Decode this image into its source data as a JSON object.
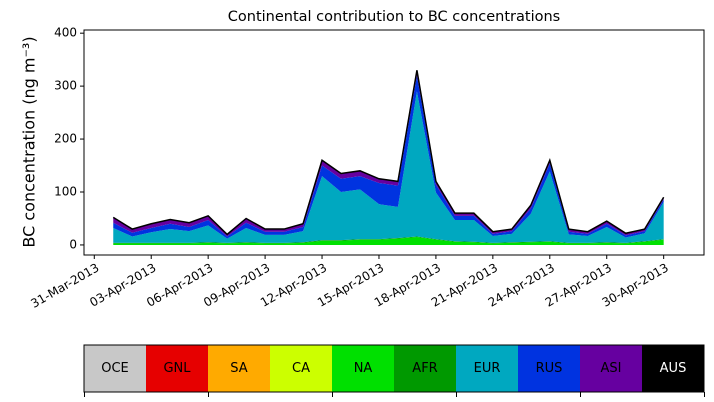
{
  "chart_data": {
    "type": "stacked_area",
    "title": "Continental contribution to BC concentrations",
    "ylabel": "BC concentration (ng m⁻³)",
    "x": [
      "2013-04-01",
      "2013-04-02",
      "2013-04-03",
      "2013-04-04",
      "2013-04-05",
      "2013-04-06",
      "2013-04-07",
      "2013-04-08",
      "2013-04-09",
      "2013-04-10",
      "2013-04-11",
      "2013-04-12",
      "2013-04-13",
      "2013-04-14",
      "2013-04-15",
      "2013-04-16",
      "2013-04-17",
      "2013-04-18",
      "2013-04-19",
      "2013-04-20",
      "2013-04-21",
      "2013-04-22",
      "2013-04-23",
      "2013-04-24",
      "2013-04-25",
      "2013-04-26",
      "2013-04-27",
      "2013-04-28",
      "2013-04-29",
      "2013-04-30"
    ],
    "series": [
      {
        "name": "OCE",
        "color": "#c8c8c8",
        "values": [
          0,
          0,
          0,
          0,
          0,
          0,
          0,
          0,
          0,
          0,
          0,
          0,
          0,
          0,
          0,
          0,
          0,
          0,
          0,
          0,
          0,
          0,
          0,
          0,
          0,
          0,
          0,
          0,
          0,
          0
        ]
      },
      {
        "name": "GNL",
        "color": "#e60000",
        "values": [
          0,
          0,
          0,
          0,
          0,
          0,
          0,
          0,
          0,
          0,
          0,
          0,
          0,
          0,
          0,
          0,
          0,
          0,
          0,
          0,
          0,
          0,
          0,
          0,
          0,
          0,
          0,
          0,
          0,
          0
        ]
      },
      {
        "name": "SA",
        "color": "#ffaa00",
        "values": [
          0,
          0,
          0,
          0,
          0,
          0,
          0,
          0,
          0,
          0,
          0,
          0,
          0,
          0,
          0,
          0,
          0,
          0,
          0,
          0,
          0,
          0,
          0,
          0,
          0,
          0,
          0,
          0,
          0,
          0
        ]
      },
      {
        "name": "CA",
        "color": "#ccff00",
        "values": [
          0,
          0,
          0,
          0,
          0,
          0,
          0,
          0,
          0,
          0,
          0,
          0,
          0,
          0,
          0,
          0,
          0,
          0,
          0,
          0,
          0,
          0,
          0,
          0,
          0,
          0,
          0,
          0,
          0,
          0
        ]
      },
      {
        "name": "NA",
        "color": "#00e000",
        "values": [
          3,
          3,
          3,
          3,
          3,
          4,
          3,
          4,
          3,
          3,
          4,
          8,
          8,
          10,
          10,
          12,
          15,
          10,
          6,
          5,
          3,
          4,
          5,
          6,
          3,
          3,
          4,
          3,
          6,
          10
        ]
      },
      {
        "name": "AFR",
        "color": "#009900",
        "values": [
          1,
          1,
          1,
          1,
          1,
          1,
          1,
          1,
          1,
          1,
          1,
          1,
          1,
          1,
          1,
          1,
          1,
          1,
          1,
          1,
          1,
          1,
          1,
          1,
          1,
          1,
          1,
          1,
          1,
          1
        ]
      },
      {
        "name": "EUR",
        "color": "#00a8c0",
        "values": [
          28,
          12,
          20,
          26,
          22,
          32,
          8,
          27,
          15,
          15,
          21,
          121,
          91,
          94,
          66,
          59,
          274,
          88,
          40,
          41,
          13,
          16,
          53,
          132,
          16,
          13,
          29,
          10,
          15,
          70
        ]
      },
      {
        "name": "RUS",
        "color": "#0033e0",
        "values": [
          10,
          7,
          8,
          10,
          8,
          10,
          4,
          10,
          6,
          6,
          8,
          20,
          25,
          25,
          40,
          40,
          30,
          15,
          8,
          8,
          4,
          5,
          10,
          15,
          5,
          4,
          6,
          4,
          4,
          5
        ]
      },
      {
        "name": "ASI",
        "color": "#6600a0",
        "values": [
          10,
          7,
          8,
          8,
          8,
          8,
          4,
          8,
          5,
          5,
          6,
          10,
          10,
          10,
          8,
          8,
          10,
          6,
          5,
          5,
          4,
          4,
          6,
          6,
          5,
          4,
          5,
          4,
          4,
          4
        ]
      },
      {
        "name": "AUS",
        "color": "#000000",
        "values": [
          0,
          0,
          0,
          0,
          0,
          0,
          0,
          0,
          0,
          0,
          0,
          0,
          0,
          0,
          0,
          0,
          0,
          0,
          0,
          0,
          0,
          0,
          0,
          0,
          0,
          0,
          0,
          0,
          0,
          0
        ]
      }
    ],
    "xlim": [
      "2013-03-30T11:00",
      "2013-05-02T03:00"
    ],
    "xticks": [
      {
        "value": "2013-03-31",
        "label": "31-Mar-2013"
      },
      {
        "value": "2013-04-03",
        "label": "03-Apr-2013"
      },
      {
        "value": "2013-04-06",
        "label": "06-Apr-2013"
      },
      {
        "value": "2013-04-09",
        "label": "09-Apr-2013"
      },
      {
        "value": "2013-04-12",
        "label": "12-Apr-2013"
      },
      {
        "value": "2013-04-15",
        "label": "15-Apr-2013"
      },
      {
        "value": "2013-04-18",
        "label": "18-Apr-2013"
      },
      {
        "value": "2013-04-21",
        "label": "21-Apr-2013"
      },
      {
        "value": "2013-04-24",
        "label": "24-Apr-2013"
      },
      {
        "value": "2013-04-27",
        "label": "27-Apr-2013"
      },
      {
        "value": "2013-04-30",
        "label": "30-Apr-2013"
      }
    ],
    "ylim": [
      -19,
      406
    ],
    "yticks": [
      0,
      100,
      200,
      300,
      400
    ]
  }
}
